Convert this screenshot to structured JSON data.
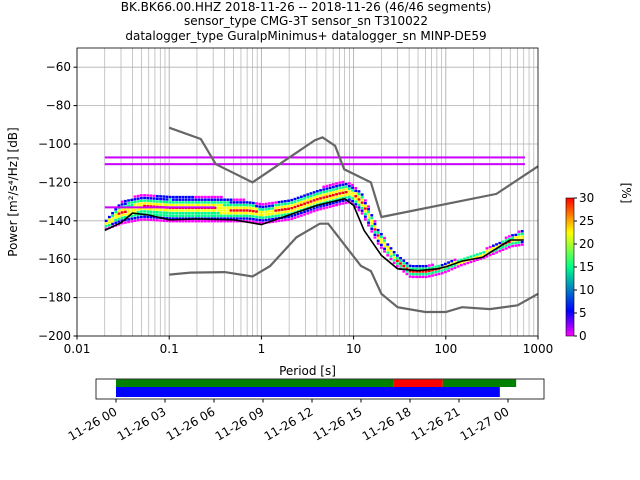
{
  "title": {
    "line1": "BK.BK66.00.HHZ   2018-11-26 -- 2018-11-26  (46/46 segments)",
    "line2": "sensor_type CMG-3T sensor_sn T310022",
    "line3": "datalogger_type GuralpMinimus+ datalogger_sn MINP-DE59"
  },
  "chart_data": [
    {
      "type": "heatmap",
      "title": "",
      "xlabel": "Period [s]",
      "ylabel": "Power [m²/s⁴/Hz] [dB]",
      "xscale": "log",
      "xlim": [
        0.01,
        1000
      ],
      "ylim": [
        -200,
        -50
      ],
      "grid": true,
      "x_ticks": [
        0.01,
        0.1,
        1,
        10,
        100,
        1000
      ],
      "x_tick_labels": [
        "0.01",
        "0.1",
        "1",
        "10",
        "100",
        "1000"
      ],
      "y_ticks": [
        -200,
        -180,
        -160,
        -140,
        -120,
        -100,
        -80,
        -60
      ],
      "y_tick_labels": [
        "−200",
        "−180",
        "−160",
        "−140",
        "−120",
        "−100",
        "−80",
        "−60"
      ],
      "colorbar": {
        "label": "[%]",
        "range": [
          0,
          30
        ],
        "ticks": [
          0,
          5,
          10,
          15,
          20,
          25,
          30
        ],
        "tick_labels": [
          "0",
          "5",
          "10",
          "15",
          "20",
          "25",
          "30"
        ],
        "colormap": [
          "#ff00ff",
          "#0000ff",
          "#00ff88",
          "#ffff00",
          "#ff0000"
        ]
      },
      "series": [
        {
          "role": "model",
          "color": "#666666",
          "x": [
            0.1,
            0.22,
            0.32,
            0.8,
            3.8,
            4.6,
            6.3,
            7.9,
            15.4,
            20,
            354,
            1000
          ],
          "y": [
            -91.5,
            -97.4,
            -110.5,
            -120,
            -98,
            -96.5,
            -101,
            -113.2,
            -120,
            -138,
            -126,
            -111.6
          ]
        },
        {
          "role": "model",
          "color": "#666666",
          "x": [
            0.1,
            0.17,
            0.4,
            0.8,
            1.24,
            2.4,
            4.3,
            5.3,
            12,
            15.4,
            20,
            30,
            60,
            100,
            150,
            300,
            600,
            1000
          ],
          "y": [
            -168,
            -167,
            -166.7,
            -169,
            -163.6,
            -148.6,
            -141.5,
            -141.5,
            -163.5,
            -166.2,
            -178,
            -185,
            -187.5,
            -187.5,
            -185,
            -186,
            -184,
            -178
          ]
        },
        {
          "role": "mean",
          "color": "#000000",
          "x": [
            0.02,
            0.03,
            0.04,
            0.06,
            0.1,
            0.2,
            0.5,
            1,
            2,
            4,
            8,
            10,
            13,
            20,
            30,
            50,
            80,
            100,
            150,
            250,
            500,
            700
          ],
          "y": [
            -145,
            -141,
            -136,
            -137,
            -139.5,
            -139,
            -139.5,
            -142,
            -137,
            -132,
            -128.5,
            -132,
            -145,
            -158,
            -165,
            -166,
            -165,
            -164,
            -161,
            -159,
            -150,
            -150
          ]
        }
      ],
      "density_band": {
        "x": [
          0.02,
          0.03,
          0.05,
          0.1,
          0.3,
          0.7,
          1,
          2,
          4,
          7,
          9,
          12,
          18,
          28,
          40,
          60,
          90,
          140,
          250,
          500,
          700
        ],
        "lo": [
          -145,
          -142,
          -140,
          -141,
          -141,
          -141,
          -142,
          -140,
          -135,
          -132,
          -131,
          -137,
          -153,
          -164,
          -170,
          -170,
          -168,
          -164,
          -160,
          -154,
          -153
        ],
        "hi": [
          -140,
          -130,
          -127,
          -127,
          -128,
          -130,
          -132,
          -129,
          -124,
          -120,
          -121,
          -126,
          -145,
          -158,
          -164,
          -164,
          -163,
          -160,
          -156,
          -148,
          -145
        ]
      }
    },
    {
      "type": "table",
      "description_role": "data availability timeline",
      "x_range": [
        "2018-11-26T00:00",
        "2018-11-27T00:00"
      ],
      "tick_labels": [
        "11-26 00",
        "11-26 03",
        "11-26 06",
        "11-26 09",
        "11-26 12",
        "11-26 15",
        "11-26 18",
        "11-26 21",
        "11-27 00"
      ],
      "rows": [
        {
          "color": "#008000",
          "segments": [
            [
              "00:00",
              "17:00"
            ]
          ]
        },
        {
          "color": "#ff0000",
          "segments": [
            [
              "17:00",
              "20:00"
            ]
          ]
        },
        {
          "color": "#008000",
          "segments": [
            [
              "20:00",
              "24:30"
            ]
          ]
        },
        {
          "color": "#0000ff",
          "segments": [
            [
              "00:00",
              "23:30"
            ]
          ]
        }
      ]
    }
  ]
}
